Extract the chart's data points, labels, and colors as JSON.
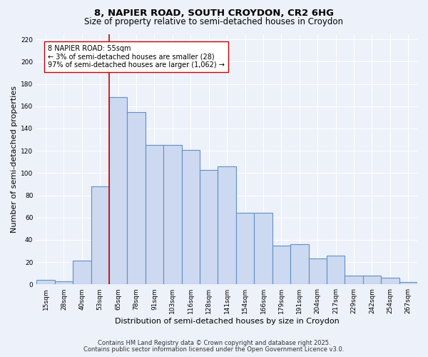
{
  "title_line1": "8, NAPIER ROAD, SOUTH CROYDON, CR2 6HG",
  "title_line2": "Size of property relative to semi-detached houses in Croydon",
  "xlabel": "Distribution of semi-detached houses by size in Croydon",
  "ylabel": "Number of semi-detached properties",
  "categories": [
    "15sqm",
    "28sqm",
    "40sqm",
    "53sqm",
    "65sqm",
    "78sqm",
    "91sqm",
    "103sqm",
    "116sqm",
    "128sqm",
    "141sqm",
    "154sqm",
    "166sqm",
    "179sqm",
    "191sqm",
    "204sqm",
    "217sqm",
    "229sqm",
    "242sqm",
    "254sqm",
    "267sqm"
  ],
  "bar_heights": [
    4,
    3,
    21,
    88,
    168,
    155,
    125,
    125,
    121,
    103,
    106,
    64,
    64,
    35,
    36,
    23,
    26,
    8,
    8,
    6,
    2
  ],
  "bar_color": "#ccd9f0",
  "bar_edge_color": "#6090c8",
  "bar_linewidth": 0.8,
  "red_line_x": 3.5,
  "red_line_color": "#cc0000",
  "annotation_text": "8 NAPIER ROAD: 55sqm\n← 3% of semi-detached houses are smaller (28)\n97% of semi-detached houses are larger (1,062) →",
  "ylim": [
    0,
    225
  ],
  "yticks": [
    0,
    20,
    40,
    60,
    80,
    100,
    120,
    140,
    160,
    180,
    200,
    220
  ],
  "background_color": "#edf1fa",
  "grid_color": "#ffffff",
  "footer_line1": "Contains HM Land Registry data © Crown copyright and database right 2025.",
  "footer_line2": "Contains public sector information licensed under the Open Government Licence v3.0.",
  "title_fontsize": 9.5,
  "subtitle_fontsize": 8.5,
  "ylabel_fontsize": 8,
  "xlabel_fontsize": 8,
  "tick_fontsize": 6.5,
  "annotation_fontsize": 7,
  "footer_fontsize": 6
}
